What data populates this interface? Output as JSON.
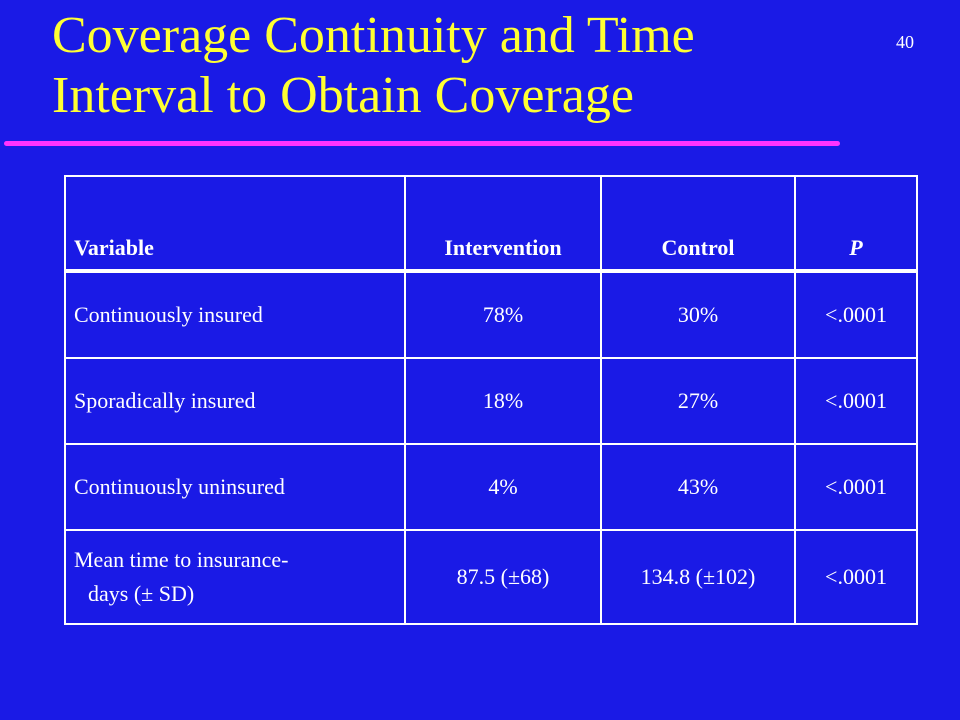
{
  "slide": {
    "title_line1": "Coverage Continuity and Time",
    "title_line2": "Interval to Obtain Coverage",
    "number": "40"
  },
  "table": {
    "headers": [
      "Variable",
      "Intervention",
      "Control",
      "P"
    ],
    "rows": [
      {
        "variable": "Continuously  insured",
        "intervention": "78%",
        "control": "30%",
        "p": "<.0001"
      },
      {
        "variable": "Sporadically insured",
        "intervention": "18%",
        "control": "27%",
        "p": "<.0001"
      },
      {
        "variable": "Continuously  uninsured",
        "intervention": "4%",
        "control": "43%",
        "p": "<.0001"
      },
      {
        "variable_line1": "Mean time to insurance-",
        "variable_line2": "days (± SD)",
        "intervention": "87.5 (±68)",
        "control": "134.8 (±102)",
        "p": "<.0001"
      }
    ]
  },
  "colors": {
    "background": "#1a1ae6",
    "title": "#ffff33",
    "rule": "#ff33ff",
    "text": "#ffffff"
  }
}
